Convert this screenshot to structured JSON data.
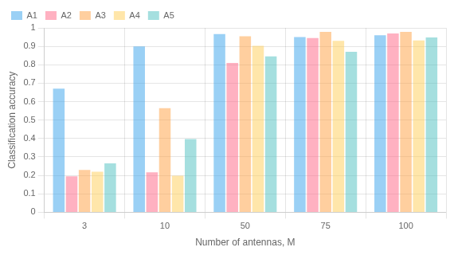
{
  "chart_data": {
    "type": "bar",
    "xlabel": "Number of antennas, M",
    "ylabel": "Classification accuracy",
    "categories": [
      "3",
      "10",
      "50",
      "75",
      "100"
    ],
    "series": [
      {
        "name": "A1",
        "values": [
          0.67,
          0.9,
          0.967,
          0.95,
          0.96
        ]
      },
      {
        "name": "A2",
        "values": [
          0.195,
          0.217,
          0.81,
          0.945,
          0.97
        ]
      },
      {
        "name": "A3",
        "values": [
          0.23,
          0.565,
          0.955,
          0.978,
          0.978
        ]
      },
      {
        "name": "A4",
        "values": [
          0.22,
          0.198,
          0.903,
          0.93,
          0.932
        ]
      },
      {
        "name": "A5",
        "values": [
          0.265,
          0.397,
          0.845,
          0.87,
          0.948
        ]
      }
    ],
    "ylim": [
      0,
      1.0
    ],
    "yticks": [
      0,
      0.1,
      0.2,
      0.3,
      0.4,
      0.5,
      0.6,
      0.7,
      0.8,
      0.9,
      1
    ],
    "grid": true,
    "legend": "upper left"
  }
}
